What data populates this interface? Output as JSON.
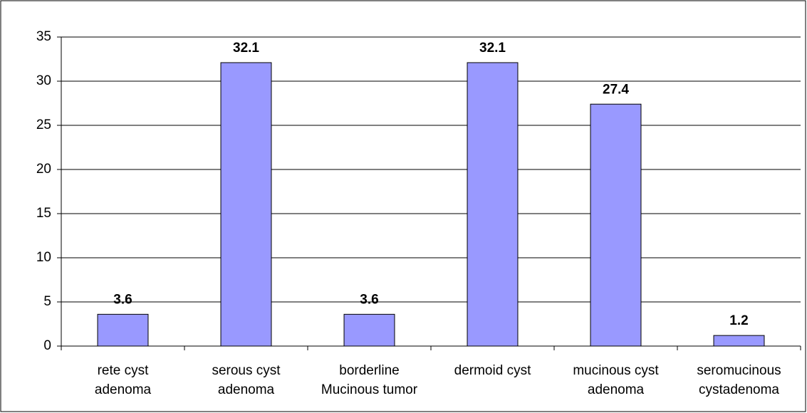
{
  "chart_data": {
    "type": "bar",
    "categories": [
      [
        "rete cyst",
        "adenoma"
      ],
      [
        "serous cyst",
        "adenoma"
      ],
      [
        "borderline",
        "Mucinous tumor"
      ],
      [
        "dermoid cyst"
      ],
      [
        "mucinous cyst",
        "adenoma"
      ],
      [
        "seromucinous",
        "cystadenoma"
      ]
    ],
    "values": [
      3.6,
      32.1,
      3.6,
      32.1,
      27.4,
      1.2
    ],
    "color": "#9999ff",
    "ylim": [
      0,
      35
    ],
    "yticks": [
      0,
      5,
      10,
      15,
      20,
      25,
      30,
      35
    ],
    "grid": true,
    "data_labels": true
  }
}
